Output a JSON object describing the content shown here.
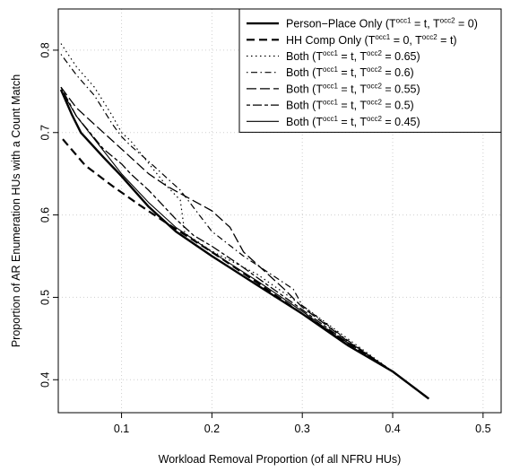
{
  "chart_data": {
    "type": "line",
    "title": "",
    "xlabel": "Workload Removal Proportion (of all NFRU HUs)",
    "ylabel": "Proportion of AR Enumeration HUs with a Count Match",
    "xlim": [
      0.03,
      0.52
    ],
    "ylim": [
      0.36,
      0.85
    ],
    "xticks": [
      0.1,
      0.2,
      0.3,
      0.4,
      0.5
    ],
    "yticks": [
      0.4,
      0.5,
      0.6,
      0.7,
      0.8
    ],
    "grid": true,
    "legend_position": "top-right",
    "series": [
      {
        "name": "Person−Place Only (T^occ1 = t, T^occ2 = 0)",
        "legend": {
          "pre": "Person−Place Only (",
          "a": "T",
          "a_sup": "occ1",
          "a_tail": " = t, ",
          "b": "T",
          "b_sup": "occ2",
          "b_tail": " = 0)"
        },
        "line_style": "solid-thick",
        "x": [
          0.033,
          0.045,
          0.055,
          0.08,
          0.1,
          0.13,
          0.16,
          0.2,
          0.25,
          0.3,
          0.35,
          0.4,
          0.44
        ],
        "y": [
          0.752,
          0.722,
          0.7,
          0.67,
          0.647,
          0.61,
          0.58,
          0.55,
          0.515,
          0.48,
          0.442,
          0.41,
          0.377
        ]
      },
      {
        "name": "HH Comp Only (T^occ1 = 0, T^occ2 = t)",
        "legend": {
          "pre": "HH Comp Only (",
          "a": "T",
          "a_sup": "occ1",
          "a_tail": " = 0, ",
          "b": "T",
          "b_sup": "occ2",
          "b_tail": " = t)"
        },
        "line_style": "dashed-thick",
        "x": [
          0.035,
          0.06,
          0.09,
          0.12,
          0.15,
          0.2,
          0.25,
          0.3,
          0.35,
          0.4,
          0.44
        ],
        "y": [
          0.692,
          0.66,
          0.635,
          0.612,
          0.59,
          0.555,
          0.518,
          0.48,
          0.445,
          0.41,
          0.377
        ]
      },
      {
        "name": "Both (T^occ1 = t, T^occ2 = 0.65)",
        "legend": {
          "pre": "Both (",
          "a": "T",
          "a_sup": "occ1",
          "a_tail": " = t, ",
          "b": "T",
          "b_sup": "occ2",
          "b_tail": " = 0.65)"
        },
        "line_style": "dotted",
        "x": [
          0.033,
          0.05,
          0.07,
          0.09,
          0.1,
          0.11,
          0.15,
          0.165,
          0.17,
          0.2,
          0.25,
          0.3,
          0.35,
          0.4,
          0.44
        ],
        "y": [
          0.808,
          0.78,
          0.755,
          0.72,
          0.7,
          0.69,
          0.635,
          0.618,
          0.578,
          0.556,
          0.528,
          0.49,
          0.45,
          0.41,
          0.377
        ]
      },
      {
        "name": "Both (T^occ1 = t, T^occ2 = 0.6)",
        "legend": {
          "pre": "Both (",
          "a": "T",
          "a_sup": "occ1",
          "a_tail": " = t, ",
          "b": "T",
          "b_sup": "occ2",
          "b_tail": " = 0.6)"
        },
        "line_style": "dotdash",
        "x": [
          0.033,
          0.05,
          0.07,
          0.09,
          0.1,
          0.11,
          0.13,
          0.165,
          0.2,
          0.235,
          0.29,
          0.3,
          0.35,
          0.4,
          0.44
        ],
        "y": [
          0.795,
          0.77,
          0.745,
          0.71,
          0.695,
          0.684,
          0.665,
          0.63,
          0.58,
          0.55,
          0.51,
          0.49,
          0.448,
          0.41,
          0.377
        ]
      },
      {
        "name": "Both (T^occ1 = t, T^occ2 = 0.55)",
        "legend": {
          "pre": "Both (",
          "a": "T",
          "a_sup": "occ1",
          "a_tail": " = t, ",
          "b": "T",
          "b_sup": "occ2",
          "b_tail": " = 0.55)"
        },
        "line_style": "longdash",
        "x": [
          0.033,
          0.05,
          0.07,
          0.1,
          0.13,
          0.15,
          0.175,
          0.2,
          0.22,
          0.235,
          0.28,
          0.3,
          0.35,
          0.4,
          0.44
        ],
        "y": [
          0.755,
          0.73,
          0.71,
          0.68,
          0.65,
          0.635,
          0.62,
          0.605,
          0.585,
          0.555,
          0.51,
          0.488,
          0.447,
          0.41,
          0.377
        ]
      },
      {
        "name": "Both (T^occ1 = t, T^occ2 = 0.5)",
        "legend": {
          "pre": "Both (",
          "a": "T",
          "a_sup": "occ1",
          "a_tail": " = t, ",
          "b": "T",
          "b_sup": "occ2",
          "b_tail": " = 0.5)"
        },
        "line_style": "twodash",
        "x": [
          0.033,
          0.05,
          0.08,
          0.1,
          0.11,
          0.13,
          0.16,
          0.18,
          0.2,
          0.23,
          0.25,
          0.3,
          0.35,
          0.4,
          0.44
        ],
        "y": [
          0.755,
          0.72,
          0.68,
          0.662,
          0.65,
          0.63,
          0.595,
          0.575,
          0.562,
          0.54,
          0.524,
          0.485,
          0.445,
          0.41,
          0.377
        ]
      },
      {
        "name": "Both (T^occ1 = t, T^occ2 = 0.45)",
        "legend": {
          "pre": "Both (",
          "a": "T",
          "a_sup": "occ1",
          "a_tail": " = t, ",
          "b": "T",
          "b_sup": "occ2",
          "b_tail": " = 0.45)"
        },
        "line_style": "solid-thin",
        "x": [
          0.033,
          0.05,
          0.08,
          0.1,
          0.13,
          0.16,
          0.2,
          0.25,
          0.3,
          0.35,
          0.4,
          0.44
        ],
        "y": [
          0.752,
          0.72,
          0.678,
          0.65,
          0.615,
          0.585,
          0.555,
          0.52,
          0.483,
          0.443,
          0.41,
          0.377
        ]
      }
    ]
  }
}
